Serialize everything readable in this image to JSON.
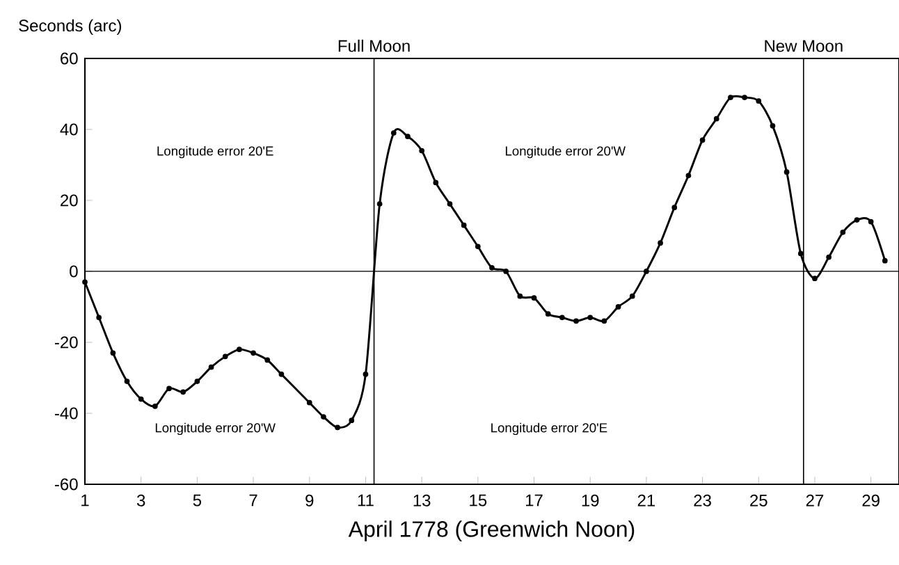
{
  "chart_data": {
    "type": "line",
    "xlabel": "April 1778 (Greenwich Noon)",
    "ylabel": "Seconds (arc)",
    "xlim": [
      1,
      30
    ],
    "ylim": [
      -60,
      60
    ],
    "xticks": [
      1,
      3,
      5,
      7,
      9,
      11,
      13,
      15,
      17,
      19,
      21,
      23,
      25,
      27,
      29
    ],
    "yticks": [
      -60,
      -40,
      -20,
      0,
      20,
      40,
      60
    ],
    "series": [
      {
        "color": "#000000",
        "x": [
          1,
          1.5,
          2,
          2.5,
          3,
          3.5,
          4,
          4.5,
          5,
          5.5,
          6,
          6.5,
          7,
          7.5,
          8,
          9,
          9.5,
          10,
          10.5,
          11,
          11.5,
          12,
          12.5,
          13,
          13.5,
          14,
          14.5,
          15,
          15.5,
          16,
          16.5,
          17,
          17.5,
          18,
          18.5,
          19,
          19.5,
          20,
          20.5,
          21,
          21.5,
          22,
          22.5,
          23,
          23.5,
          24,
          24.5,
          25,
          25.5,
          26,
          26.5,
          27,
          27.5,
          28,
          28.5,
          29,
          29.5
        ],
        "values": [
          -3,
          -13,
          -23,
          -31,
          -36,
          -38,
          -33,
          -34,
          -31,
          -27,
          -24,
          -22,
          -23,
          -25,
          -29,
          -37,
          -41,
          -44,
          -42,
          -29,
          19,
          39,
          38,
          34,
          25,
          19,
          13,
          7,
          1,
          0,
          -7,
          -7.5,
          -12,
          -13,
          -14,
          -13,
          -14,
          -10,
          -7,
          0,
          8,
          18,
          27,
          37,
          43,
          49,
          49,
          48,
          41,
          28,
          5,
          -2,
          4,
          11,
          14.5,
          14,
          3
        ]
      }
    ],
    "marker": "circle",
    "line_style": "solid",
    "ref_lines": [
      {
        "axis": "y",
        "value": 0
      },
      {
        "axis": "x",
        "value": 11.3,
        "label": "Full Moon"
      },
      {
        "axis": "x",
        "value": 26.6,
        "label": "New Moon"
      }
    ],
    "annotations": [
      "Longitude error 20'E",
      "Longitude error 20'W",
      "Longitude error 20'W",
      "Longitude error 20'E"
    ]
  }
}
